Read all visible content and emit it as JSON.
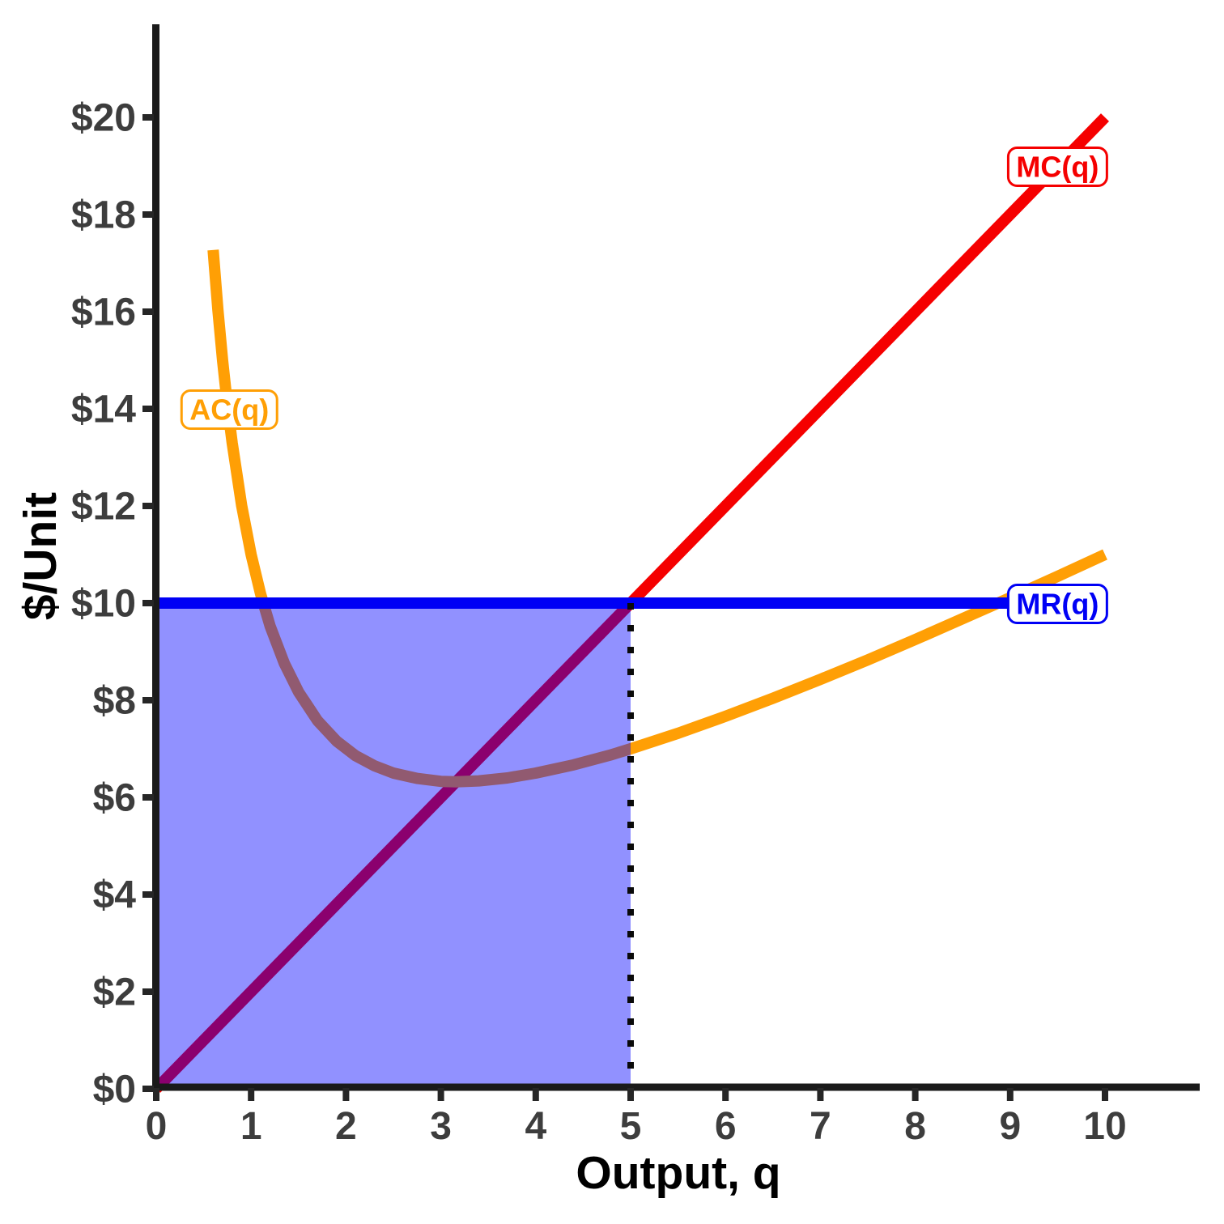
{
  "chart_data": {
    "type": "line",
    "title": "",
    "xlabel": "Output, q",
    "ylabel": "$/Unit",
    "x_range": [
      0,
      11
    ],
    "y_range": [
      0,
      21.9
    ],
    "grid": "off",
    "x_ticks": [
      {
        "v": 0,
        "label": "0"
      },
      {
        "v": 1,
        "label": "1"
      },
      {
        "v": 2,
        "label": "2"
      },
      {
        "v": 3,
        "label": "3"
      },
      {
        "v": 4,
        "label": "4"
      },
      {
        "v": 5,
        "label": "5"
      },
      {
        "v": 6,
        "label": "6"
      },
      {
        "v": 7,
        "label": "7"
      },
      {
        "v": 8,
        "label": "8"
      },
      {
        "v": 9,
        "label": "9"
      },
      {
        "v": 10,
        "label": "10"
      }
    ],
    "y_ticks": [
      {
        "v": 0,
        "label": "$0"
      },
      {
        "v": 2,
        "label": "$2"
      },
      {
        "v": 4,
        "label": "$4"
      },
      {
        "v": 6,
        "label": "$6"
      },
      {
        "v": 8,
        "label": "$8"
      },
      {
        "v": 10,
        "label": "$10"
      },
      {
        "v": 12,
        "label": "$12"
      },
      {
        "v": 14,
        "label": "$14"
      },
      {
        "v": 16,
        "label": "$16"
      },
      {
        "v": 18,
        "label": "$18"
      },
      {
        "v": 20,
        "label": "$20"
      }
    ],
    "series": [
      {
        "name": "MC(q)",
        "color": "#f50000",
        "points": [
          [
            0,
            0
          ],
          [
            10,
            20
          ]
        ]
      },
      {
        "name": "AC(q)",
        "color": "#ff9f05",
        "points": [
          [
            0.6,
            17.27
          ],
          [
            0.65,
            16.03
          ],
          [
            0.7,
            14.99
          ],
          [
            0.75,
            14.08
          ],
          [
            0.8,
            13.3
          ],
          [
            0.9,
            12.01
          ],
          [
            1,
            11
          ],
          [
            1.1,
            10.19
          ],
          [
            1.2,
            9.53
          ],
          [
            1.35,
            8.76
          ],
          [
            1.5,
            8.17
          ],
          [
            1.7,
            7.58
          ],
          [
            1.9,
            7.16
          ],
          [
            2.1,
            6.86
          ],
          [
            2.3,
            6.65
          ],
          [
            2.5,
            6.5
          ],
          [
            2.75,
            6.39
          ],
          [
            3,
            6.33
          ],
          [
            3.16,
            6.32
          ],
          [
            3.4,
            6.34
          ],
          [
            3.7,
            6.4
          ],
          [
            4,
            6.5
          ],
          [
            4.4,
            6.67
          ],
          [
            4.8,
            6.88
          ],
          [
            5,
            7
          ],
          [
            5.5,
            7.32
          ],
          [
            6,
            7.67
          ],
          [
            6.5,
            8.04
          ],
          [
            7,
            8.43
          ],
          [
            7.5,
            8.83
          ],
          [
            8,
            9.25
          ],
          [
            8.5,
            9.68
          ],
          [
            9,
            10.11
          ],
          [
            9.5,
            10.55
          ],
          [
            10,
            11
          ]
        ]
      },
      {
        "name": "MR(q)",
        "color": "#0000f5",
        "points": [
          [
            0,
            10
          ],
          [
            10,
            10
          ]
        ]
      }
    ],
    "shaded_region": {
      "x0": 0,
      "x1": 5,
      "y0": 0,
      "y1": 10,
      "color": "#0000ff",
      "opacity": 0.43
    },
    "dotted_line": {
      "x": 5,
      "y0": 0,
      "y1": 10,
      "color": "#0a0a0a"
    },
    "annotations": [
      {
        "text": "MC(q)",
        "x": 9.5,
        "y": 19,
        "color": "#f50000"
      },
      {
        "text": "AC(q)",
        "x": 0.77,
        "y": 14,
        "color": "#ff9f05"
      },
      {
        "text": "MR(q)",
        "x": 9.5,
        "y": 10,
        "color": "#0000f5"
      }
    ],
    "style": {
      "axis_color": "#1a1a1a",
      "tick_color": "#262626",
      "tick_label_color": "#3d3d3d",
      "title_color": "#000000",
      "background": "#ffffff"
    }
  }
}
